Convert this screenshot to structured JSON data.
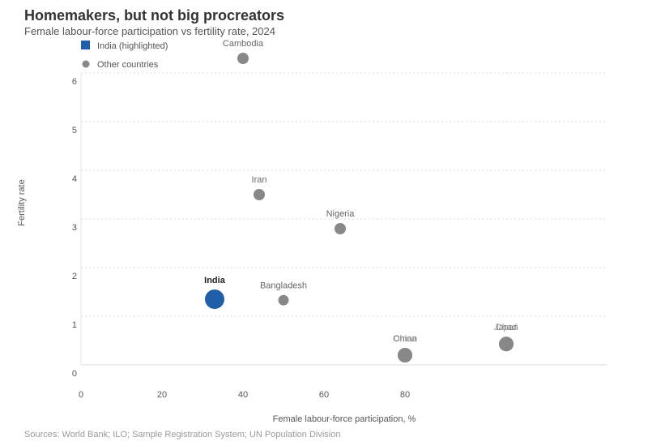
{
  "header": {
    "title": "Homemakers, but not big procreators",
    "subtitle": "Female labour-force participation vs fertility rate, 2024"
  },
  "footer": {
    "source": "Sources: World Bank; ILO; Sample Registration System; UN Population Division"
  },
  "legend": {
    "placement": "top-left",
    "items": [
      {
        "label": "India (highlighted)",
        "color": "#1f5fa8",
        "shape": "square"
      },
      {
        "label": "Other countries",
        "color": "#888888",
        "shape": "circle"
      }
    ]
  },
  "colors": {
    "highlight": "#1f5fa8",
    "other": "#888888",
    "grid": "#dddddd"
  },
  "chart_data": {
    "type": "scatter",
    "title": "Homemakers, but not big procreators",
    "subtitle": "Female labour-force participation vs fertility rate, 2024",
    "xlabel": "Female labour-force participation, %",
    "ylabel": "Fertility rate",
    "xlim": [
      0,
      130
    ],
    "ylim": [
      0,
      6.5
    ],
    "xticks": [
      0,
      20,
      40,
      60,
      80
    ],
    "yticks": [
      0,
      1,
      2,
      3,
      4,
      5,
      6
    ],
    "grid": true,
    "points": [
      {
        "label": "Cambodia",
        "x": 40,
        "y": 6.3,
        "highlight": false,
        "size": "small"
      },
      {
        "label": "Iran",
        "x": 44,
        "y": 3.5,
        "highlight": false,
        "size": "small"
      },
      {
        "label": "Nigeria",
        "x": 64,
        "y": 2.8,
        "highlight": false,
        "size": "small"
      },
      {
        "label": "India",
        "x": 33,
        "y": 1.35,
        "highlight": true,
        "size": "large"
      },
      {
        "label": "Bangladesh",
        "x": 50,
        "y": 1.33,
        "highlight": false,
        "size": "xsmall"
      },
      {
        "label": "China",
        "x": 80,
        "y": 0.2,
        "highlight": false,
        "size": "medium"
      },
      {
        "label": "Oman",
        "x": 80,
        "y": 0.2,
        "highlight": false,
        "size": "medium"
      },
      {
        "label": "Japan",
        "x": 105,
        "y": 0.43,
        "highlight": false,
        "size": "medium"
      },
      {
        "label": "Chad",
        "x": 105,
        "y": 0.43,
        "highlight": false,
        "size": "medium"
      }
    ]
  }
}
